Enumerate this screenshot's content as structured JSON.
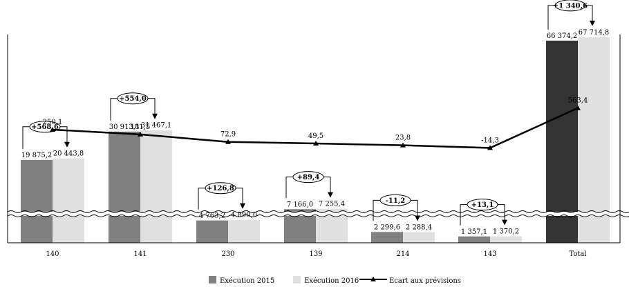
{
  "chart_data": {
    "type": "bar",
    "categories": [
      "140",
      "141",
      "230",
      "139",
      "214",
      "143",
      "Total"
    ],
    "series": [
      {
        "name": "Exécution 2015",
        "values": [
          19875.2,
          30913.1,
          4763.2,
          7166.0,
          2299.6,
          1357.1,
          66374.2
        ],
        "labels": [
          "19 875,2",
          "30 913,1",
          "4 763,2",
          "7 166,0",
          "2 299,6",
          "1 357,1",
          "66 374,2"
        ],
        "color": "#808080",
        "total_color": "#333333"
      },
      {
        "name": "Exécution 2016",
        "values": [
          20443.8,
          31467.1,
          4890.0,
          7255.4,
          2288.4,
          1370.2,
          67714.8
        ],
        "labels": [
          "20 443,8",
          "31 467,1",
          "4 890,0",
          "7 255,4",
          "2 288,4",
          "1 370,2",
          "67 714,8"
        ],
        "color": "#e0e0e0"
      },
      {
        "name": "Ecart aux prévisions",
        "type": "line",
        "values": [
          250.1,
          181.5,
          72.9,
          49.5,
          23.8,
          -14.3,
          563.4
        ],
        "labels": [
          "250,1",
          "181,5",
          "72,9",
          "49,5",
          "23,8",
          "-14,3",
          "563,4"
        ],
        "color": "#000000"
      }
    ],
    "differences": [
      "+568,6",
      "+554,0",
      "+126,8",
      "+89,4",
      "-11,2",
      "+13,1",
      "+1 340,6"
    ],
    "axis_break": true,
    "grid": false,
    "legend_position": "bottom-center"
  }
}
